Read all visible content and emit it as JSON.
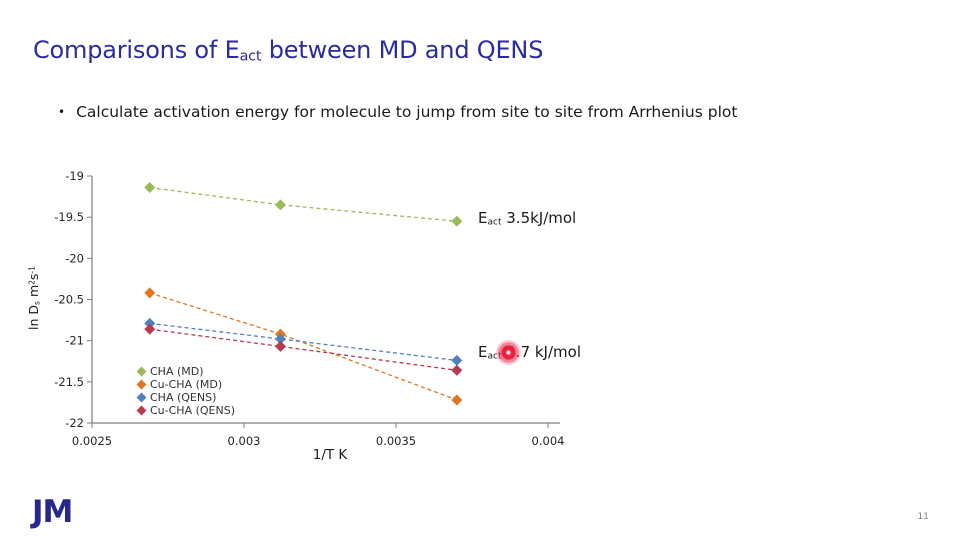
{
  "slide": {
    "title_parts": [
      {
        "t": "Comparisons of E"
      },
      {
        "t": "act",
        "s": "sub"
      },
      {
        "t": " between MD and QENS"
      }
    ],
    "bullet_marker": "•",
    "bullet_text": "Calculate activation energy for molecule to jump from site to site from Arrhenius plot",
    "logo_text": "JM",
    "page_number": "11",
    "title_color": "#2B2B9C",
    "logo_color": "#28288A"
  },
  "chart_data": {
    "type": "scatter",
    "title": "",
    "xlabel": "1/T K",
    "ylabel_parts": [
      {
        "t": "ln D"
      },
      {
        "t": "s",
        "s": "sub"
      },
      {
        "t": " m"
      },
      {
        "t": "2",
        "s": "sup"
      },
      {
        "t": "s"
      },
      {
        "t": "-1",
        "s": "sup"
      }
    ],
    "xlim": [
      0.0025,
      0.004
    ],
    "ylim": [
      -22,
      -19
    ],
    "x_tick_values": [
      0.0025,
      0.003,
      0.0035,
      0.004
    ],
    "x_tick_labels": [
      "0.0025",
      "0.003",
      "0.0035",
      "0.004"
    ],
    "y_tick_values": [
      -19,
      -19.5,
      -20,
      -20.5,
      -21,
      -21.5,
      -22
    ],
    "y_tick_labels": [
      "-19",
      "-19.5",
      "-20",
      "-20.5",
      "-21",
      "-21.5",
      "-22"
    ],
    "grid": false,
    "line_style": "dashed",
    "marker": "diamond",
    "legend_position": "inside-bottom-left",
    "x": [
      0.00269,
      0.00312,
      0.0037
    ],
    "series": [
      {
        "name": "CHA (MD)",
        "color": "#9BBB59",
        "values": [
          -19.14,
          -19.35,
          -19.55
        ]
      },
      {
        "name": "Cu-CHA (MD)",
        "color": "#E2751D",
        "values": [
          -20.42,
          -20.92,
          -21.72
        ]
      },
      {
        "name": "CHA (QENS)",
        "color": "#4F81BD",
        "values": [
          -20.79,
          -20.98,
          -21.24
        ]
      },
      {
        "name": "Cu-CHA (QENS)",
        "color": "#B73A4E",
        "values": [
          -20.86,
          -21.07,
          -21.36
        ]
      }
    ],
    "annotations": [
      {
        "parts": [
          {
            "t": "E"
          },
          {
            "t": "act",
            "s": "sub"
          },
          {
            "t": " 3.5kJ/mol"
          }
        ],
        "laser_highlight": false
      },
      {
        "parts": [
          {
            "t": "E"
          },
          {
            "t": "act",
            "s": "sub"
          },
          {
            "t": " 9.7 kJ/mol"
          }
        ],
        "laser_highlight": true
      }
    ],
    "laser_color": "#E8203E",
    "axis_color": "#7F7F7F",
    "tick_label_color": "#262626"
  }
}
